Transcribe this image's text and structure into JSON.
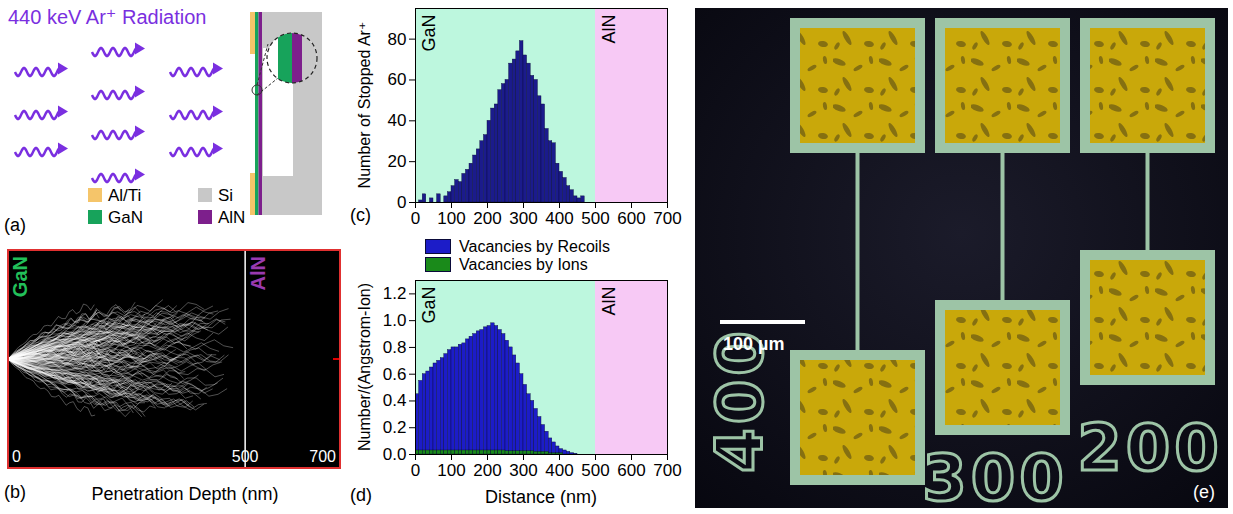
{
  "panel_a": {
    "letter": "(a)",
    "title": "440 keV Ar⁺ Radiation",
    "legend": [
      {
        "name": "Al/Ti",
        "color": "#f5c56a"
      },
      {
        "name": "Si",
        "color": "#c8c8c8"
      },
      {
        "name": "GaN",
        "color": "#17a35b"
      },
      {
        "name": "AlN",
        "color": "#7d1f8c"
      }
    ]
  },
  "panel_b": {
    "letter": "(b)",
    "materials": [
      {
        "name": "GaN",
        "color": "#22c05a"
      },
      {
        "name": "AlN",
        "color": "#9a3ab0"
      }
    ],
    "interface": 500,
    "xlim": [
      0,
      700
    ],
    "xticks": [
      0,
      500,
      700
    ],
    "xlabel": "Penetration Depth (nm)"
  },
  "chart_data": [
    {
      "letter": "(c)",
      "type": "histogram",
      "ylabel": "Number of Stopped Ar⁺",
      "bins": [
        0,
        10,
        20,
        30,
        40,
        50,
        60,
        70,
        80,
        90,
        100,
        110,
        120,
        130,
        140,
        150,
        160,
        170,
        180,
        190,
        200,
        210,
        220,
        230,
        240,
        250,
        260,
        270,
        280,
        290,
        300,
        310,
        320,
        330,
        340,
        350,
        360,
        370,
        380,
        390,
        400,
        410,
        420,
        430,
        440,
        450,
        460,
        470,
        480
      ],
      "values": [
        0,
        1,
        4,
        0,
        2,
        0,
        4,
        0,
        3,
        5,
        8,
        11,
        10,
        14,
        16,
        19,
        23,
        26,
        30,
        33,
        40,
        46,
        48,
        55,
        58,
        60,
        68,
        70,
        74,
        79,
        72,
        68,
        62,
        60,
        52,
        48,
        36,
        30,
        29,
        19,
        15,
        12,
        8,
        6,
        3,
        2,
        3,
        0
      ],
      "color": "#1b1b8c",
      "xlim": [
        0,
        700
      ],
      "xticks": [
        0,
        100,
        200,
        300,
        400,
        500,
        600,
        700
      ],
      "ylim": [
        0,
        95
      ],
      "yticks": [
        0,
        20,
        40,
        60,
        80
      ],
      "regions": [
        {
          "name": "GaN",
          "range": [
            0,
            500
          ],
          "color": "#bdf7de"
        },
        {
          "name": "AlN",
          "range": [
            500,
            700
          ],
          "color": "#f7c9f5"
        }
      ]
    },
    {
      "letter": "(d)",
      "type": "histogram",
      "xlabel": "Distance (nm)",
      "ylabel": "Number/(Angstrom-Ion)",
      "bins": [
        0,
        10,
        20,
        30,
        40,
        50,
        60,
        70,
        80,
        90,
        100,
        110,
        120,
        130,
        140,
        150,
        160,
        170,
        180,
        190,
        200,
        210,
        220,
        230,
        240,
        250,
        260,
        270,
        280,
        290,
        300,
        310,
        320,
        330,
        340,
        350,
        360,
        370,
        380,
        390,
        400,
        410,
        420,
        430,
        440,
        450,
        460,
        470,
        480,
        490,
        500
      ],
      "series": [
        {
          "name": "Vacancies by Recoils",
          "color": "#1c1cc8",
          "values": [
            0.45,
            0.55,
            0.6,
            0.62,
            0.65,
            0.68,
            0.7,
            0.72,
            0.75,
            0.78,
            0.8,
            0.8,
            0.82,
            0.83,
            0.86,
            0.88,
            0.9,
            0.92,
            0.93,
            0.95,
            0.96,
            0.98,
            0.96,
            0.93,
            0.9,
            0.85,
            0.8,
            0.74,
            0.68,
            0.6,
            0.52,
            0.45,
            0.4,
            0.34,
            0.28,
            0.22,
            0.17,
            0.12,
            0.09,
            0.06,
            0.04,
            0.03,
            0.02,
            0.01,
            0.005,
            0,
            0,
            0,
            0,
            0
          ]
        },
        {
          "name": "Vacancies by Ions",
          "color": "#1a8a1a",
          "values": [
            0.03,
            0.03,
            0.03,
            0.03,
            0.03,
            0.03,
            0.03,
            0.03,
            0.03,
            0.03,
            0.03,
            0.03,
            0.03,
            0.03,
            0.03,
            0.03,
            0.03,
            0.03,
            0.03,
            0.03,
            0.03,
            0.03,
            0.03,
            0.03,
            0.03,
            0.025,
            0.025,
            0.025,
            0.025,
            0.025,
            0.025,
            0.025,
            0.025,
            0.02,
            0.02,
            0.02,
            0.02,
            0.01,
            0.01,
            0.01,
            0.01,
            0,
            0,
            0,
            0,
            0,
            0,
            0,
            0,
            0
          ]
        }
      ],
      "legend": "top",
      "xlim": [
        0,
        700
      ],
      "xticks": [
        0,
        100,
        200,
        300,
        400,
        500,
        600,
        700
      ],
      "ylim": [
        0,
        1.3
      ],
      "yticks": [
        {
          "value": 0,
          "label": "0.0"
        },
        {
          "value": 0.2,
          "label": "0.2"
        },
        {
          "value": 0.4,
          "label": "0.4"
        },
        {
          "value": 0.6,
          "label": "0.6"
        },
        {
          "value": 0.8,
          "label": "0.8"
        },
        {
          "value": 1,
          "label": "1.0"
        },
        {
          "value": 1.2,
          "label": "1.2"
        }
      ],
      "regions": [
        {
          "name": "GaN",
          "range": [
            0,
            500
          ],
          "color": "#bdf7de"
        },
        {
          "name": "AlN",
          "range": [
            500,
            700
          ],
          "color": "#f7c9f5"
        }
      ]
    }
  ],
  "panel_e": {
    "letter": "(e)",
    "scale_bar": "100 µm",
    "labels": [
      "400",
      "300",
      "200"
    ]
  }
}
